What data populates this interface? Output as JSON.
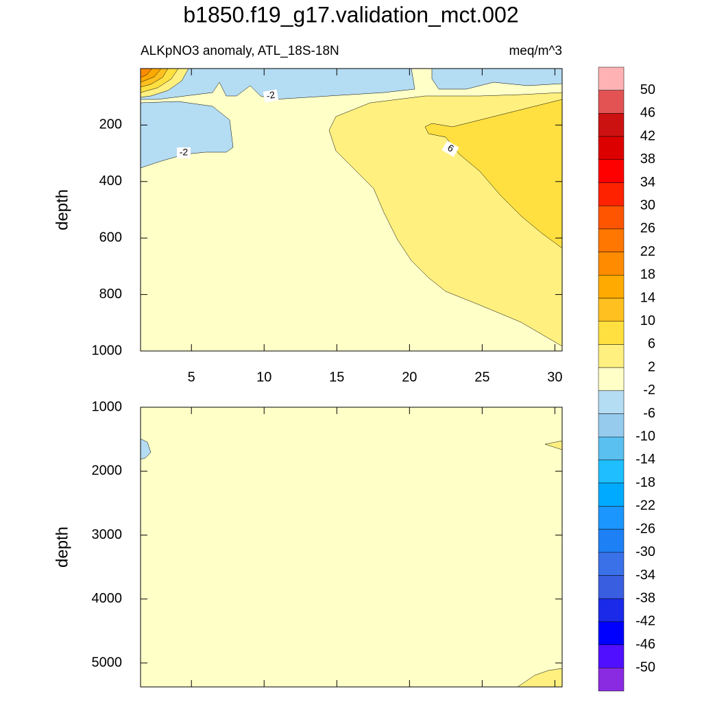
{
  "chart_data": {
    "type": "contour",
    "title": "b1850.f19_g17.validation_mct.002",
    "subtitle_left": "ALKpNO3 anomaly, ATL_18S-18N",
    "subtitle_right": "meq/m^3",
    "xlim": [
      1.5,
      30.5
    ],
    "xticks": [
      5,
      10,
      15,
      20,
      25,
      30
    ],
    "panels": [
      {
        "ylabel": "depth",
        "ylim": [
          0,
          1000
        ],
        "yticks": [
          200,
          400,
          600,
          800,
          1000
        ]
      },
      {
        "ylabel": "depth",
        "ylim": [
          1000,
          5375
        ],
        "yticks": [
          1000,
          2000,
          3000,
          4000,
          5000
        ]
      }
    ],
    "contour_labels": [
      -2,
      -2,
      6
    ],
    "colorbar": {
      "levels": [
        50,
        46,
        42,
        38,
        34,
        30,
        26,
        22,
        18,
        14,
        10,
        6,
        2,
        -2,
        -6,
        -10,
        -14,
        -18,
        -22,
        -26,
        -30,
        -34,
        -38,
        -42,
        -46,
        -50
      ],
      "colors": [
        "#ffb2b4",
        "#e35353",
        "#cc1111",
        "#dd0000",
        "#ff0000",
        "#ff2200",
        "#ff5500",
        "#ff7700",
        "#ff8c00",
        "#ffaa00",
        "#ffc020",
        "#ffe040",
        "#fff080",
        "#ffffc8",
        "#b4dcf3",
        "#96cbed",
        "#5ac0f0",
        "#1ebeff",
        "#00aaff",
        "#1c96ff",
        "#1e80f5",
        "#3a70e8",
        "#3a5ee0",
        "#1a2ae8",
        "#0000ff",
        "#5010ff",
        "#8a2be2"
      ]
    }
  }
}
